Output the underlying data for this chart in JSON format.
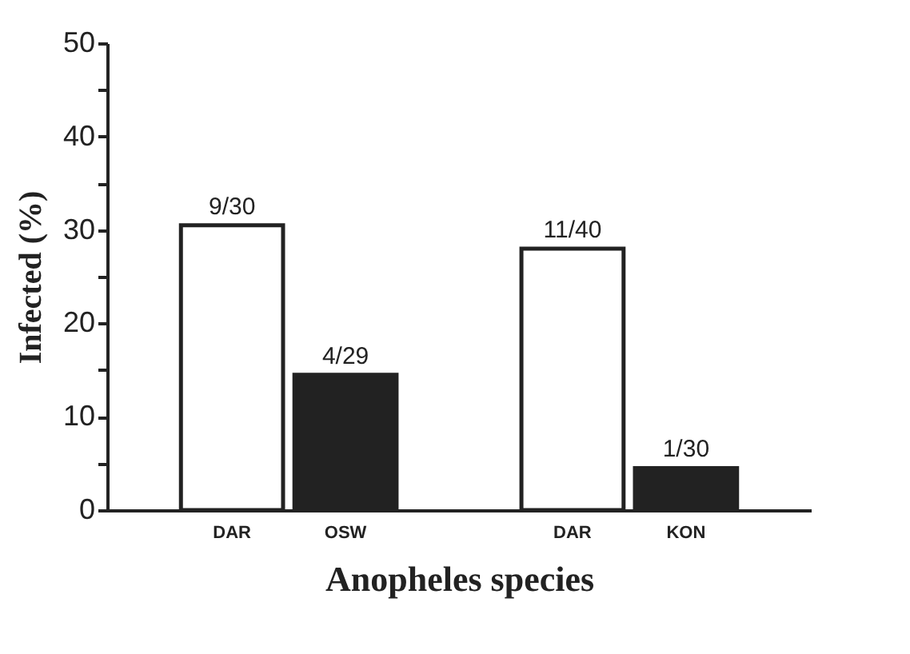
{
  "chart_data": {
    "type": "bar",
    "xlabel": "Anopheles species",
    "ylabel": "Infected (%)",
    "categories": [
      "DAR",
      "OSW",
      null,
      "DAR",
      "KON"
    ],
    "values": [
      30.5,
      14.5,
      null,
      28,
      4.5
    ],
    "colors": [
      "#ffffff",
      "#222222",
      null,
      "#ffffff",
      "#222222"
    ],
    "value_labels": [
      "9/30",
      "4/29",
      null,
      "11/40",
      "1/30"
    ],
    "ylim": [
      0,
      50
    ],
    "yticks": [
      0,
      {
        "value": 5,
        "label": null
      },
      10,
      {
        "value": 15,
        "label": null
      },
      20,
      {
        "value": 25,
        "label": null
      },
      30,
      {
        "value": 35,
        "label": null
      },
      40,
      {
        "value": 45,
        "label": null
      },
      50
    ],
    "grid": false
  }
}
